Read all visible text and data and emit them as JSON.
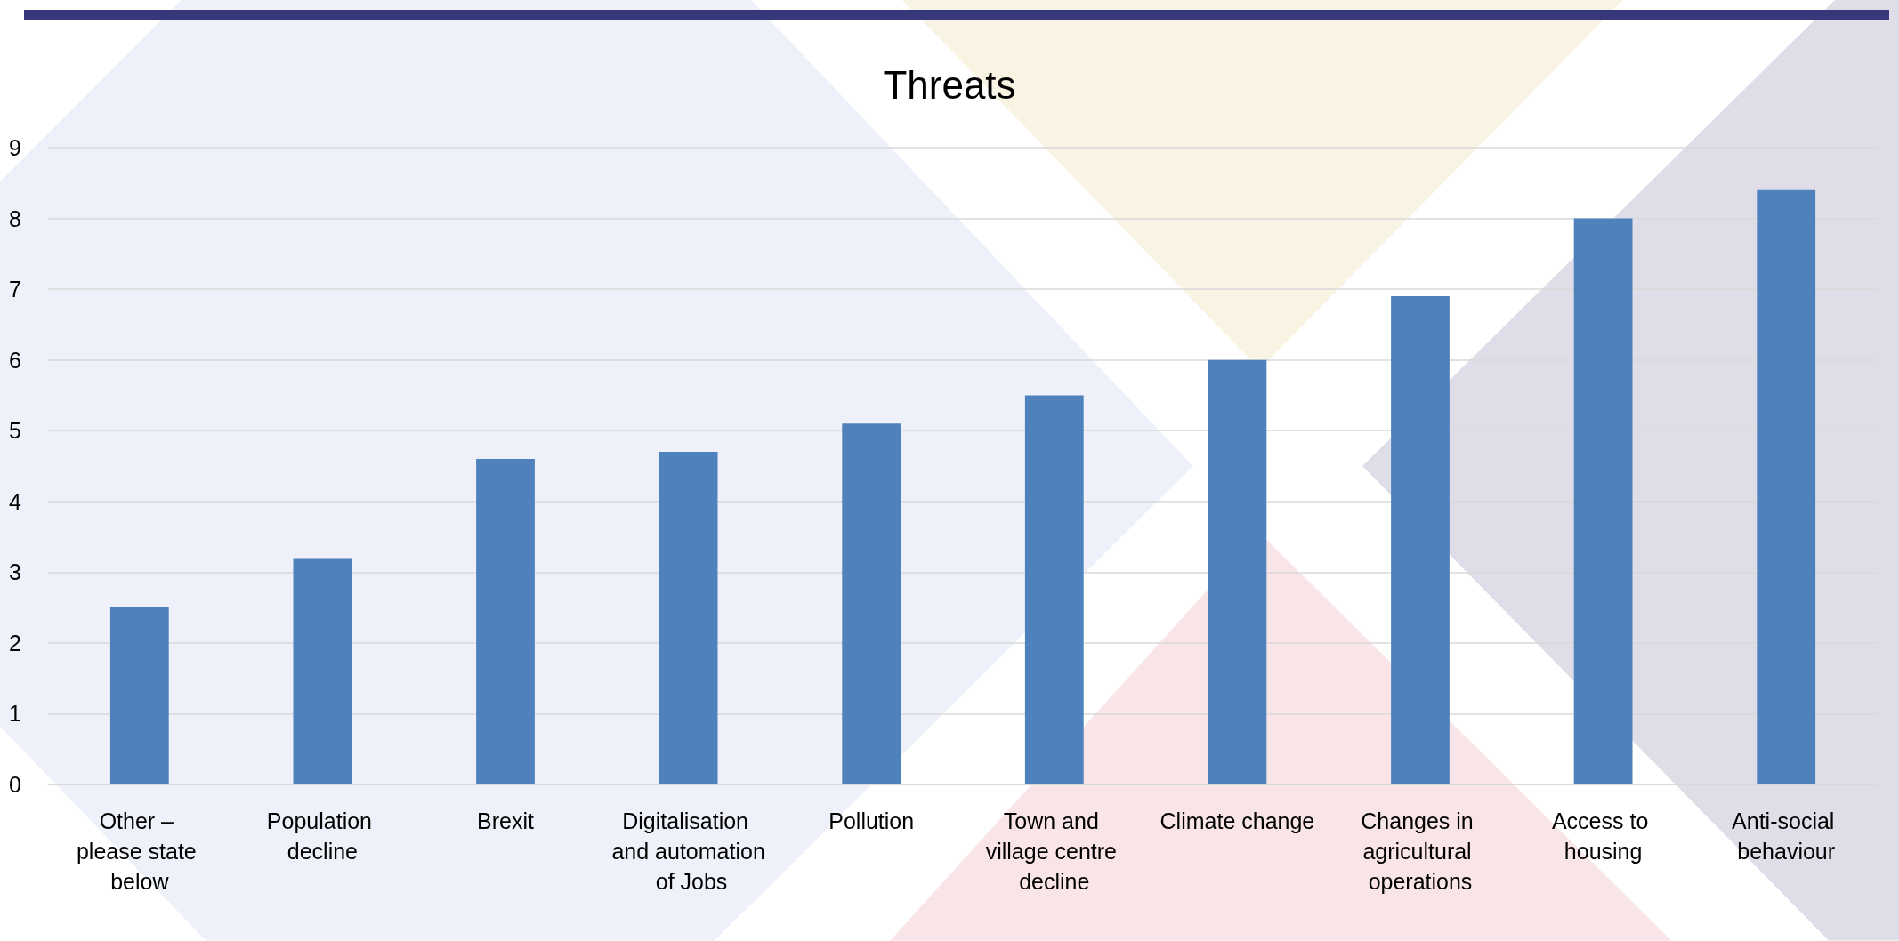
{
  "chart_data": {
    "type": "bar",
    "title": "Threats",
    "categories": [
      "Other – please state below",
      "Population decline",
      "Brexit",
      "Digitalisation and automation of Jobs",
      "Pollution",
      "Town and village centre decline",
      "Climate change",
      "Changes in agricultural operations",
      "Access to housing",
      "Anti-social behaviour"
    ],
    "values": [
      2.5,
      3.2,
      4.6,
      4.7,
      5.1,
      5.5,
      6.0,
      6.9,
      8.0,
      8.4
    ],
    "color": "#4f81bd",
    "ylim": [
      0,
      9
    ],
    "yticks": [
      0,
      1,
      2,
      3,
      4,
      5,
      6,
      7,
      8,
      9
    ],
    "grid": "y"
  }
}
